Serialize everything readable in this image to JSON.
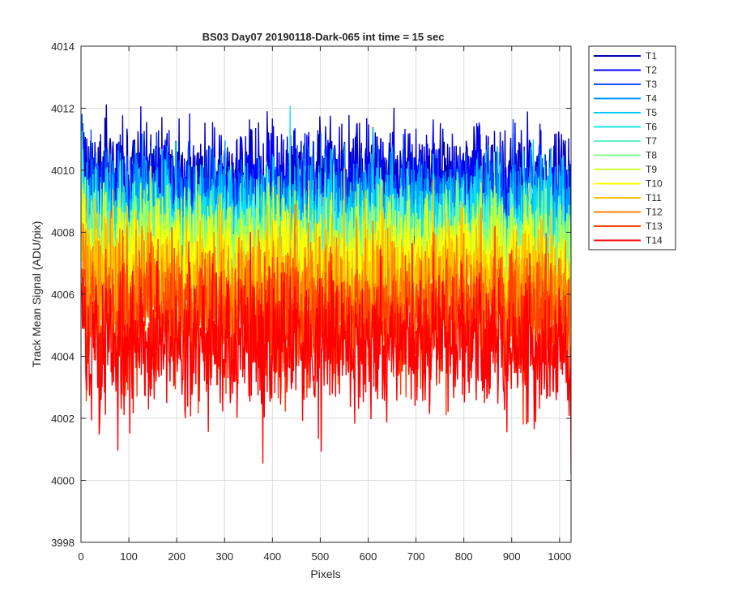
{
  "chart_data": {
    "type": "line",
    "title": "BS03 Day07 20190118-Dark-065 int time = 15 sec",
    "xlabel": "Pixels",
    "ylabel": "Track Mean Signal (ADU/pix)",
    "xlim": [
      0,
      1024
    ],
    "ylim": [
      3998,
      4014
    ],
    "xticks": [
      0,
      100,
      200,
      300,
      400,
      500,
      600,
      700,
      800,
      900,
      1000
    ],
    "yticks": [
      3998,
      4000,
      4002,
      4004,
      4006,
      4008,
      4010,
      4012,
      4014
    ],
    "grid": true,
    "legend_position": "outside-top-right",
    "x_points": 1024,
    "series": [
      {
        "name": "T1",
        "color": "#0000b0",
        "mean": 4009.8,
        "noise": 0.85
      },
      {
        "name": "T2",
        "color": "#0000ff",
        "mean": 4009.5,
        "noise": 0.85
      },
      {
        "name": "T3",
        "color": "#0050ff",
        "mean": 4009.0,
        "noise": 0.85
      },
      {
        "name": "T4",
        "color": "#0099ff",
        "mean": 4008.7,
        "noise": 0.85
      },
      {
        "name": "T5",
        "color": "#00ccff",
        "mean": 4008.4,
        "noise": 0.85
      },
      {
        "name": "T6",
        "color": "#1ae6e6",
        "mean": 4008.0,
        "noise": 0.85
      },
      {
        "name": "T7",
        "color": "#66f2cc",
        "mean": 4007.8,
        "noise": 0.85
      },
      {
        "name": "T8",
        "color": "#80ff80",
        "mean": 4007.6,
        "noise": 0.85
      },
      {
        "name": "T9",
        "color": "#ccff33",
        "mean": 4007.3,
        "noise": 0.9
      },
      {
        "name": "T10",
        "color": "#ffff00",
        "mean": 4007.0,
        "noise": 0.9
      },
      {
        "name": "T11",
        "color": "#ffbf00",
        "mean": 4006.4,
        "noise": 0.95
      },
      {
        "name": "T12",
        "color": "#ff8000",
        "mean": 4005.8,
        "noise": 1.0
      },
      {
        "name": "T13",
        "color": "#ff4000",
        "mean": 4005.2,
        "noise": 1.05
      },
      {
        "name": "T14",
        "color": "#ff0000",
        "mean": 4004.3,
        "noise": 1.1
      }
    ]
  }
}
